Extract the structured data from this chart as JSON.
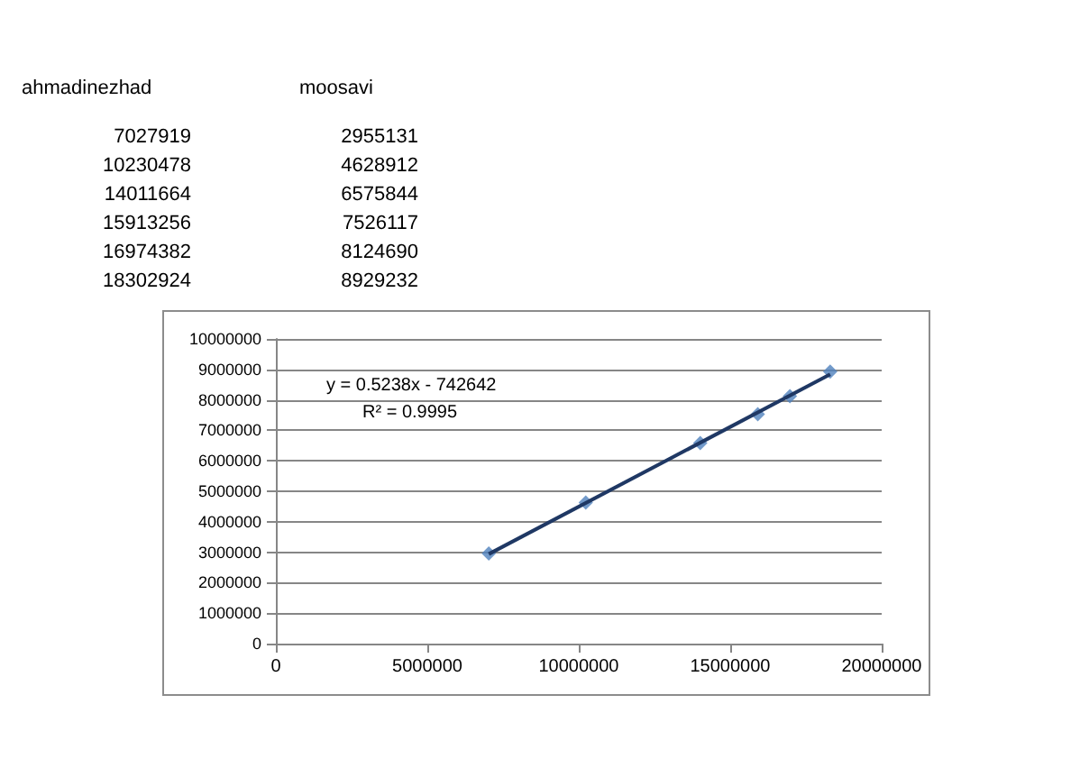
{
  "chart_data": [
    {
      "type": "other",
      "annotations": [
        "ahmadinezhad",
        "moosavi",
        "7027919",
        "2955131",
        "10230478",
        "4628912",
        "14011664",
        "6575844",
        "15913256",
        "7526117",
        "16974382",
        "8124690",
        "18302924",
        "8929232"
      ]
    },
    {
      "type": "scatter",
      "xlim": [
        0,
        20000000
      ],
      "xticks": [
        0,
        5000000,
        10000000,
        15000000,
        20000000
      ],
      "ylim": [
        0,
        10000000
      ],
      "yticks": [
        0,
        1000000,
        2000000,
        3000000,
        4000000,
        5000000,
        6000000,
        7000000,
        8000000,
        9000000,
        10000000
      ],
      "grid": "y",
      "annotations": [
        "y = 0.5238x - 742642",
        "R² = 0.9995"
      ],
      "series": [
        {
          "type": "scatter",
          "marker": "diamond",
          "color": "#4f81bd",
          "x": [
            7030000,
            10230000,
            14010000,
            15910000,
            16970000,
            18300000
          ],
          "values": [
            2960000,
            4630000,
            6580000,
            7530000,
            8120000,
            8930000
          ]
        },
        {
          "type": "line",
          "marker": "none",
          "color": "#1f3864",
          "x": [
            7030000,
            18300000
          ],
          "values": [
            2940000,
            8840000
          ]
        }
      ]
    }
  ]
}
